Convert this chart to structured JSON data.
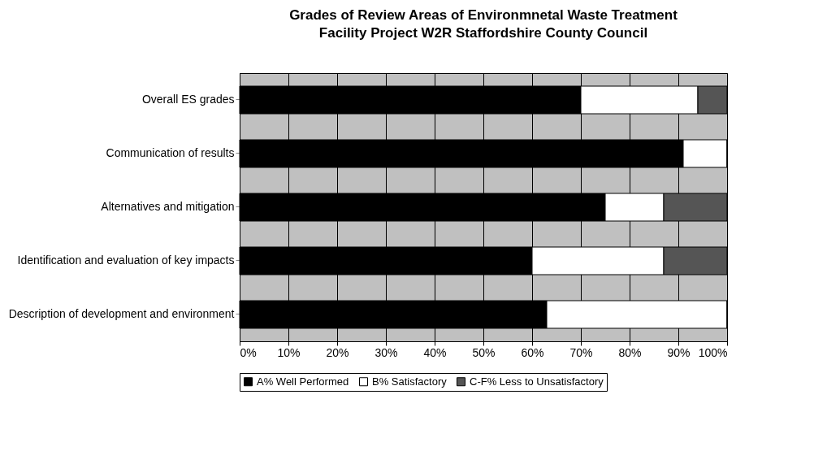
{
  "chart_data": {
    "type": "bar",
    "orientation": "horizontal",
    "stacked": true,
    "title": "Grades of Review Areas of Environmnetal Waste Treatment Facility Project W2R Staffordshire County Council",
    "categories": [
      "Overall ES grades",
      "Communication of results",
      "Alternatives and mitigation",
      "Identification and evaluation of key impacts",
      "Description of development and environment"
    ],
    "series": [
      {
        "name": "A% Well Performed",
        "color": "#000000",
        "values": [
          70,
          91,
          75,
          60,
          63
        ]
      },
      {
        "name": "B% Satisfactory",
        "color": "#ffffff",
        "values": [
          24,
          9,
          12,
          27,
          37
        ]
      },
      {
        "name": "C-F% Less to Unsatisfactory",
        "color": "#555555",
        "values": [
          6,
          0,
          13,
          13,
          0
        ]
      }
    ],
    "xlim": [
      0,
      100
    ],
    "xticks": [
      {
        "value": 0,
        "label": "0%"
      },
      {
        "value": 10,
        "label": "10%"
      },
      {
        "value": 20,
        "label": "20%"
      },
      {
        "value": 30,
        "label": "30%"
      },
      {
        "value": 40,
        "label": "40%"
      },
      {
        "value": 50,
        "label": "50%"
      },
      {
        "value": 60,
        "label": "60%"
      },
      {
        "value": 70,
        "label": "70%"
      },
      {
        "value": 80,
        "label": "80%"
      },
      {
        "value": 90,
        "label": "90%"
      },
      {
        "value": 100,
        "label": "100%"
      }
    ],
    "grid": "x",
    "legend": "bottom"
  }
}
